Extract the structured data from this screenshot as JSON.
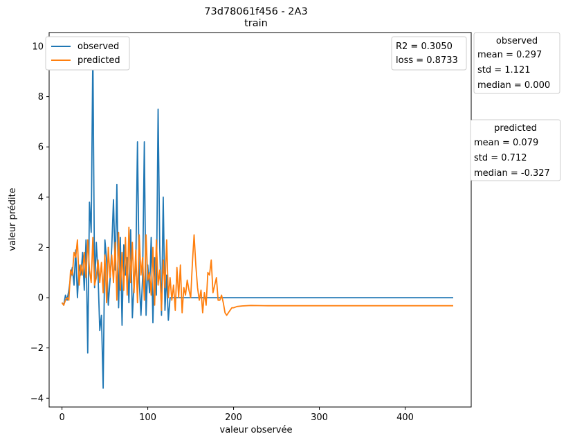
{
  "chart_data": {
    "type": "line",
    "title": "73d78061f456 - 2A3",
    "subtitle": "train",
    "xlabel": "valeur observée",
    "ylabel": "valeur prédite",
    "xlim": [
      -15,
      477
    ],
    "ylim": [
      -4.35,
      10.55
    ],
    "xticks": [
      0,
      100,
      200,
      300,
      400
    ],
    "yticks": [
      -4,
      -2,
      0,
      2,
      4,
      6,
      8,
      10
    ],
    "grid": false,
    "legend": {
      "placement": "top-left",
      "entries": [
        {
          "name": "observed",
          "color": "#1f77b4"
        },
        {
          "name": "predicted",
          "color": "#ff7f0e"
        }
      ]
    },
    "metrics": {
      "placement": "top-right",
      "lines": [
        "R2 = 0.3050",
        "loss = 0.8733"
      ]
    },
    "stats_boxes": [
      {
        "title": "observed",
        "lines": [
          "mean = 0.297",
          "std = 1.121",
          "median = 0.000"
        ]
      },
      {
        "title": "predicted",
        "lines": [
          "mean = 0.079",
          "std = 0.712",
          "median = -0.327"
        ]
      }
    ],
    "series": [
      {
        "name": "observed",
        "color": "#1f77b4",
        "x": [
          0,
          2,
          4,
          6,
          8,
          10,
          12,
          14,
          16,
          18,
          20,
          22,
          24,
          26,
          28,
          30,
          32,
          34,
          36,
          38,
          40,
          42,
          44,
          46,
          48,
          50,
          52,
          54,
          56,
          58,
          60,
          62,
          64,
          66,
          68,
          70,
          72,
          74,
          76,
          78,
          80,
          82,
          84,
          86,
          88,
          90,
          92,
          94,
          96,
          98,
          100,
          102,
          104,
          106,
          108,
          110,
          112,
          114,
          116,
          118,
          120,
          122,
          124,
          126,
          205,
          207,
          456
        ],
        "y": [
          -0.2,
          -0.3,
          0.1,
          -0.1,
          0.3,
          0.8,
          1.2,
          0.5,
          1.9,
          0.0,
          1.3,
          0.9,
          1.8,
          0.3,
          2.3,
          -2.2,
          3.8,
          2.6,
          9.9,
          0.4,
          2.2,
          0.9,
          -1.3,
          -0.7,
          -3.6,
          2.3,
          1.5,
          -0.3,
          0.7,
          2.0,
          3.9,
          1.1,
          4.5,
          -0.4,
          2.4,
          -1.1,
          2.1,
          0.9,
          1.6,
          -0.2,
          2.7,
          -0.8,
          0.6,
          1.2,
          6.2,
          0.7,
          -0.7,
          0.8,
          6.2,
          -0.7,
          1.3,
          0.2,
          2.4,
          -1.0,
          1.6,
          0.1,
          7.5,
          2.0,
          -0.7,
          4.0,
          -0.5,
          0.9,
          -0.9,
          0.0,
          0.0,
          0.0,
          0.0
        ]
      },
      {
        "name": "predicted",
        "color": "#ff7f0e",
        "x": [
          0,
          2,
          4,
          6,
          8,
          10,
          12,
          14,
          16,
          18,
          20,
          22,
          24,
          26,
          28,
          30,
          32,
          34,
          36,
          38,
          40,
          42,
          44,
          46,
          48,
          50,
          52,
          54,
          56,
          58,
          60,
          62,
          64,
          66,
          68,
          70,
          72,
          74,
          76,
          78,
          80,
          82,
          84,
          86,
          88,
          90,
          92,
          94,
          96,
          98,
          100,
          102,
          104,
          106,
          108,
          110,
          112,
          114,
          116,
          118,
          120,
          122,
          124,
          126,
          128,
          130,
          132,
          134,
          136,
          138,
          140,
          142,
          144,
          146,
          148,
          150,
          152,
          154,
          156,
          158,
          160,
          162,
          164,
          166,
          168,
          170,
          172,
          174,
          176,
          178,
          180,
          182,
          184,
          186,
          188,
          190,
          192,
          194,
          196,
          198,
          200,
          204,
          210,
          220,
          240,
          300,
          456
        ],
        "y": [
          -0.2,
          -0.3,
          -0.1,
          0.0,
          -0.1,
          1.1,
          0.9,
          1.8,
          1.6,
          2.3,
          0.5,
          1.3,
          0.9,
          1.8,
          0.8,
          2.3,
          1.1,
          0.6,
          2.4,
          0.5,
          0.8,
          1.5,
          0.6,
          1.4,
          0.2,
          1.7,
          -0.2,
          2.0,
          0.8,
          1.7,
          0.6,
          2.2,
          -0.1,
          2.6,
          0.3,
          1.8,
          0.3,
          2.4,
          0.1,
          2.8,
          0.6,
          2.2,
          0.2,
          1.9,
          -0.2,
          2.5,
          0.9,
          1.6,
          -0.1,
          2.5,
          0.7,
          1.0,
          0.1,
          2.0,
          -0.3,
          2.3,
          0.5,
          1.1,
          -0.5,
          1.5,
          0.4,
          2.3,
          0.0,
          0.8,
          -0.1,
          0.5,
          -0.5,
          1.2,
          0.0,
          1.3,
          -0.6,
          0.4,
          0.1,
          0.7,
          0.3,
          0.0,
          1.4,
          2.5,
          1.3,
          0.4,
          -0.1,
          0.3,
          -0.6,
          0.2,
          -0.3,
          1.0,
          0.9,
          1.5,
          0.2,
          0.5,
          0.8,
          -0.1,
          -0.1,
          0.1,
          -0.2,
          -0.6,
          -0.7,
          -0.6,
          -0.5,
          -0.4,
          -0.4,
          -0.35,
          -0.33,
          -0.31,
          -0.32,
          -0.32,
          -0.32
        ]
      }
    ]
  }
}
